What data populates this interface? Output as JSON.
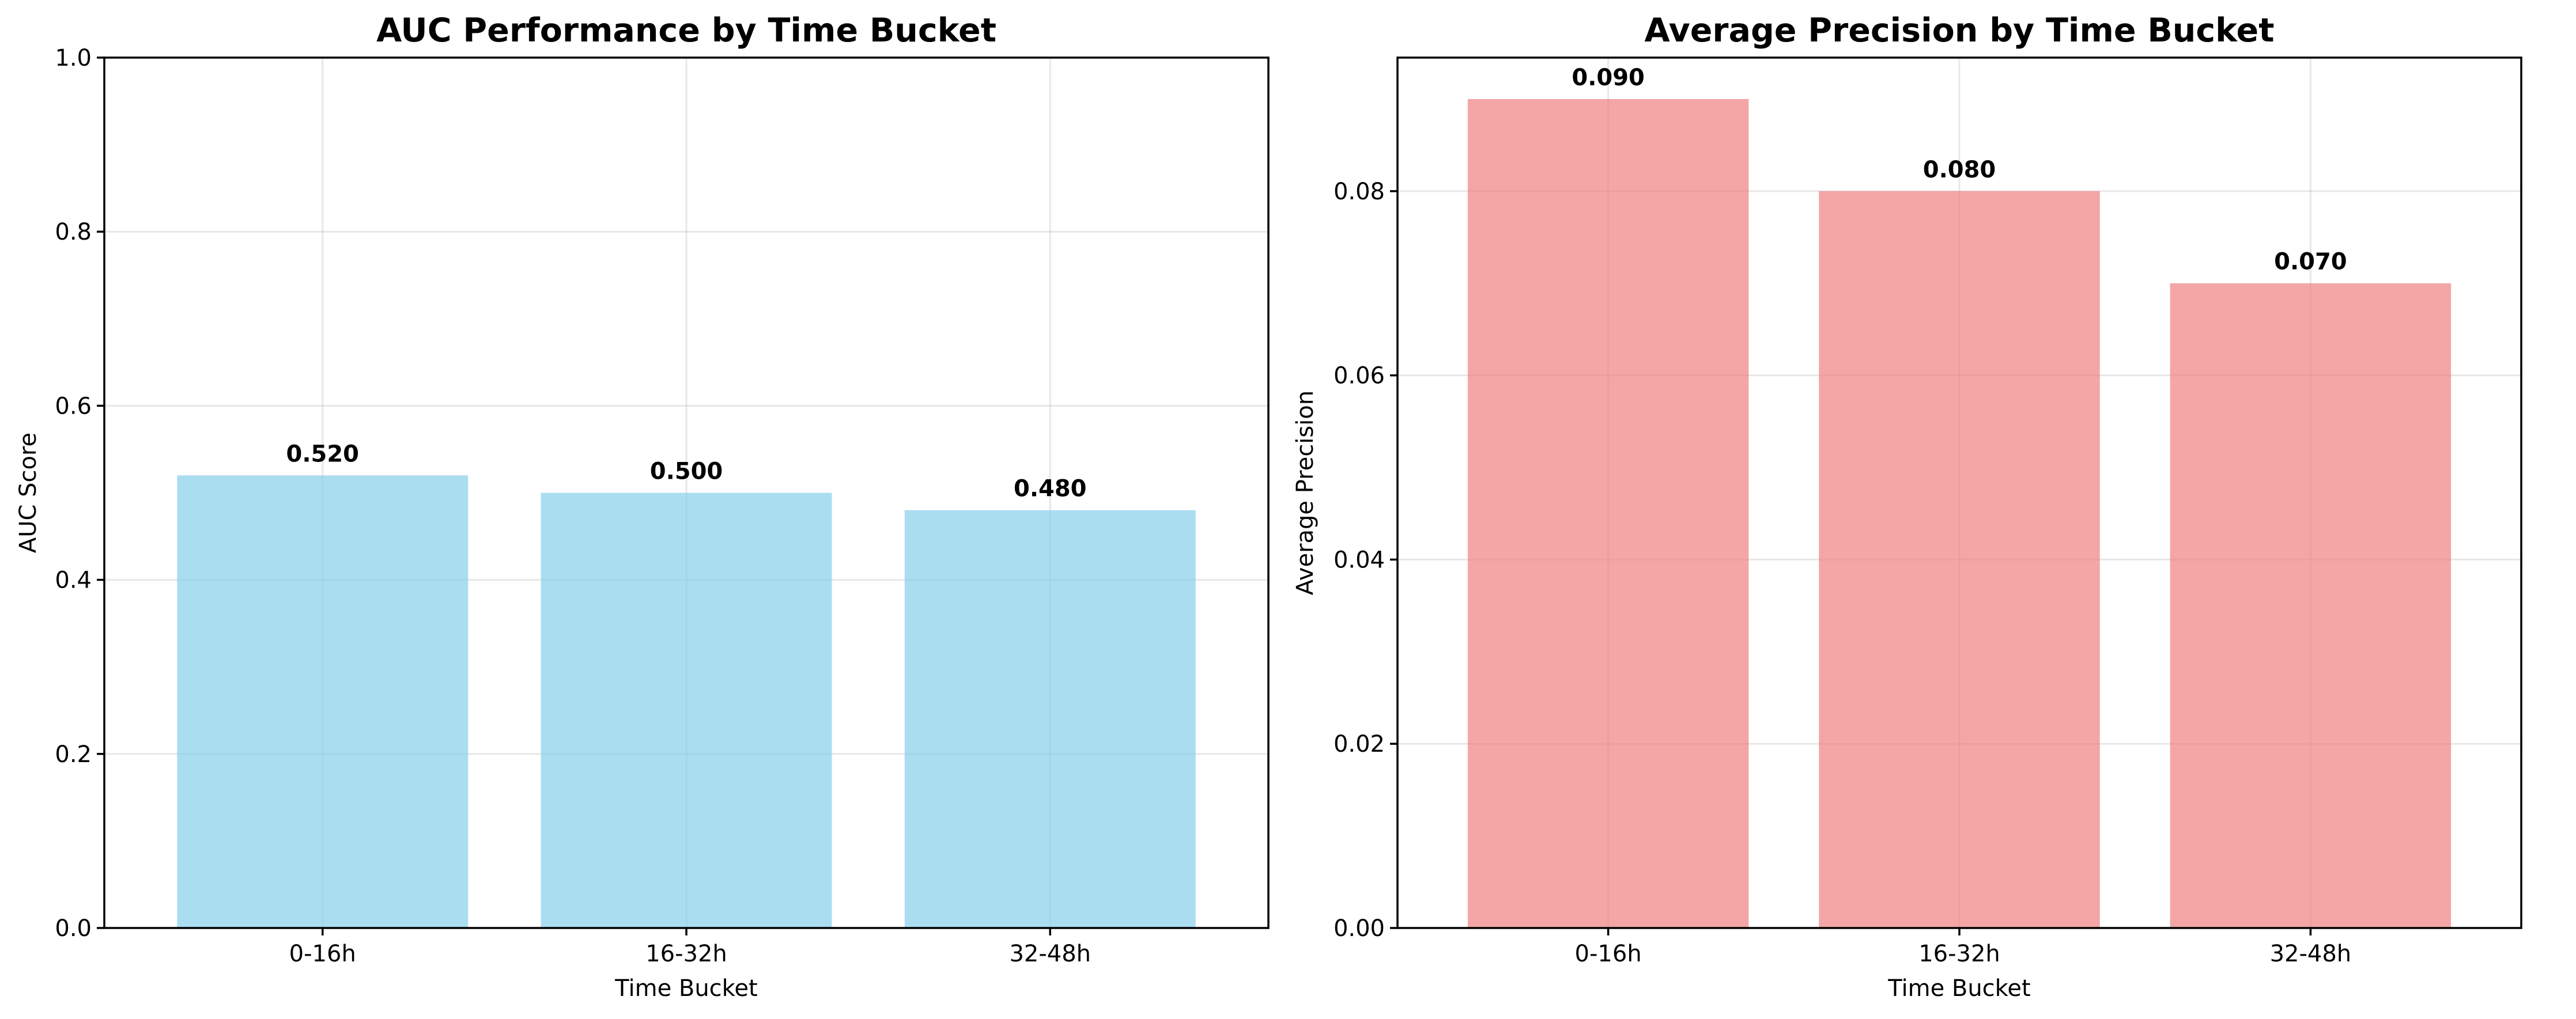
{
  "chart_data": [
    {
      "type": "bar",
      "title": "AUC Performance by Time Bucket",
      "xlabel": "Time Bucket",
      "ylabel": "AUC Score",
      "categories": [
        "0-16h",
        "16-32h",
        "32-48h"
      ],
      "values": [
        0.52,
        0.5,
        0.48
      ],
      "value_labels": [
        "0.520",
        "0.500",
        "0.480"
      ],
      "ylim": [
        0,
        1.0
      ],
      "yticks": [
        0.0,
        0.2,
        0.4,
        0.6,
        0.8,
        1.0
      ],
      "ytick_labels": [
        "0.0",
        "0.2",
        "0.4",
        "0.6",
        "0.8",
        "1.0"
      ],
      "bar_color": "#87ceeb",
      "grid": true,
      "legend": "none"
    },
    {
      "type": "bar",
      "title": "Average Precision by Time Bucket",
      "xlabel": "Time Bucket",
      "ylabel": "Average Precision",
      "categories": [
        "0-16h",
        "16-32h",
        "32-48h"
      ],
      "values": [
        0.09,
        0.08,
        0.07
      ],
      "value_labels": [
        "0.090",
        "0.080",
        "0.070"
      ],
      "ylim": [
        0,
        0.0945
      ],
      "yticks": [
        0.0,
        0.02,
        0.04,
        0.06,
        0.08
      ],
      "ytick_labels": [
        "0.00",
        "0.02",
        "0.04",
        "0.06",
        "0.08"
      ],
      "bar_color": "#f08080",
      "grid": true,
      "legend": "none"
    }
  ]
}
